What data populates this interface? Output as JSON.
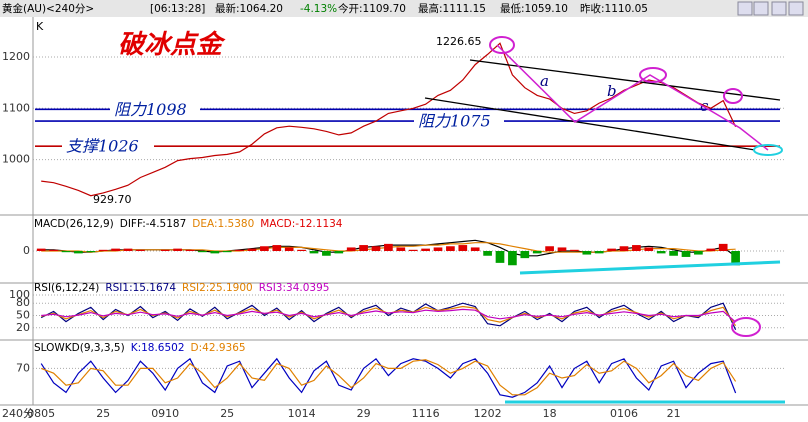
{
  "header": {
    "symbol": "黄金(AU)<240分>",
    "time": "[06:13:28]",
    "last": "最新:1064.20",
    "change": "-4.13%",
    "open": "今开:1109.70",
    "high": "最高:1111.15",
    "low": "最低:1059.10",
    "prev_close": "昨收:1110.05"
  },
  "chart_data": [
    {
      "type": "line",
      "axis_label": "K",
      "title": "破冰点金",
      "xlabel": "240分",
      "categories": [
        "0805",
        null,
        null,
        null,
        null,
        "25",
        null,
        null,
        null,
        null,
        "0910",
        null,
        null,
        null,
        null,
        "25",
        null,
        null,
        null,
        null,
        null,
        "1014",
        null,
        null,
        null,
        null,
        "29",
        null,
        null,
        null,
        null,
        "1116",
        null,
        null,
        null,
        null,
        "1202",
        null,
        null,
        null,
        null,
        "18",
        null,
        null,
        null,
        null,
        null,
        "0106",
        null,
        null,
        null,
        "21",
        null,
        null,
        null,
        null,
        null,
        null,
        null,
        null
      ],
      "values": [
        958,
        955,
        948,
        940,
        929.7,
        935,
        942,
        950,
        965,
        975,
        985,
        998,
        1002,
        1004,
        1008,
        1010,
        1015,
        1030,
        1050,
        1062,
        1065,
        1063,
        1060,
        1055,
        1048,
        1052,
        1065,
        1075,
        1090,
        1095,
        1100,
        1108,
        1125,
        1135,
        1155,
        1185,
        1205,
        1226.65,
        1165,
        1140,
        1125,
        1118,
        1100,
        1090,
        1095,
        1110,
        1120,
        1135,
        1145,
        1155,
        1150,
        1140,
        1125,
        1110,
        1100,
        1115,
        1064,
        null,
        null,
        null
      ],
      "color": "#c00000",
      "ylim": [
        892,
        1272
      ],
      "yticks": [
        1000,
        1100,
        1200
      ],
      "grid": true,
      "annotations": [
        "1226.65",
        "929.70",
        "a",
        "b",
        "c"
      ],
      "levels": [
        {
          "label": "阻力1098",
          "value": 1098,
          "color": "#0000b0"
        },
        {
          "label": "阻力1075",
          "value": 1075,
          "color": "#0000b0"
        },
        {
          "label": "支撑1026",
          "value": 1026,
          "color": "#c00000"
        }
      ]
    },
    {
      "type": "line",
      "title": "MACD(26,12,9)",
      "ylim": [
        -16,
        16
      ],
      "yticks": [
        0
      ],
      "grid": true,
      "series": [
        {
          "name": "DIFF:-4.5187",
          "color": "#000000",
          "values": [
            1,
            1,
            0,
            -1,
            -1,
            0,
            1,
            1,
            1,
            1,
            1,
            1,
            1,
            0,
            -1,
            0,
            1,
            2,
            3,
            4,
            4,
            3,
            1,
            -1,
            -1,
            1,
            3,
            4,
            5,
            5,
            5,
            5,
            6,
            7,
            8,
            9,
            7,
            3,
            -2,
            -4,
            -4,
            -2,
            0,
            0,
            -1,
            -1,
            0,
            2,
            3,
            4,
            3,
            1,
            -1,
            -1,
            1,
            3,
            -4.5187,
            null,
            null,
            null
          ]
        },
        {
          "name": "DEA:1.5380",
          "color": "#e08000",
          "values": [
            0,
            0,
            0,
            0,
            -1,
            0,
            0,
            1,
            1,
            1,
            1,
            1,
            1,
            1,
            0,
            0,
            0,
            1,
            2,
            3,
            3,
            3,
            2,
            1,
            0,
            0,
            1,
            2,
            3,
            4,
            4,
            5,
            5,
            6,
            6,
            7,
            7,
            6,
            4,
            2,
            0,
            -1,
            -1,
            -1,
            -1,
            -1,
            0,
            0,
            1,
            2,
            2,
            2,
            1,
            0,
            0,
            1,
            1.538,
            null,
            null,
            null
          ]
        },
        {
          "name": "MACD:-12.1134",
          "type": "bar",
          "color": "#e00000",
          "color_down": "#00a000",
          "values": [
            2,
            1,
            -1,
            -2,
            -1,
            1,
            2,
            2,
            1,
            0,
            1,
            2,
            1,
            -1,
            -2,
            -1,
            1,
            2,
            4,
            5,
            3,
            1,
            -2,
            -4,
            -2,
            3,
            5,
            4,
            6,
            3,
            1,
            2,
            3,
            4,
            5,
            3,
            -4,
            -10,
            -12,
            -6,
            -2,
            4,
            3,
            1,
            -3,
            -2,
            2,
            4,
            5,
            3,
            -2,
            -4,
            -5,
            -3,
            2,
            6,
            -12.1134,
            null,
            null,
            null
          ]
        }
      ]
    },
    {
      "type": "line",
      "title": "RSI(6,12,24)",
      "ylim": [
        0,
        100
      ],
      "yticks": [
        20,
        50,
        80,
        100
      ],
      "grid": true,
      "series": [
        {
          "name": "RSI1:15.1674",
          "color": "#000080",
          "values": [
            45,
            60,
            35,
            55,
            70,
            40,
            65,
            50,
            72,
            45,
            60,
            38,
            66,
            48,
            70,
            42,
            58,
            75,
            50,
            68,
            40,
            62,
            35,
            55,
            70,
            45,
            65,
            75,
            50,
            68,
            58,
            78,
            62,
            70,
            80,
            72,
            30,
            25,
            45,
            60,
            40,
            55,
            35,
            60,
            70,
            45,
            65,
            75,
            55,
            40,
            60,
            35,
            50,
            45,
            70,
            80,
            15.1674,
            null,
            null,
            null
          ]
        },
        {
          "name": "RSI2:25.1900",
          "color": "#e08000",
          "values": [
            48,
            55,
            42,
            52,
            62,
            45,
            60,
            52,
            65,
            50,
            56,
            44,
            60,
            50,
            63,
            47,
            56,
            67,
            54,
            63,
            46,
            58,
            42,
            53,
            63,
            48,
            60,
            68,
            55,
            63,
            58,
            70,
            62,
            66,
            72,
            68,
            40,
            34,
            45,
            55,
            45,
            52,
            42,
            56,
            62,
            49,
            60,
            67,
            57,
            46,
            56,
            42,
            50,
            48,
            62,
            70,
            25.19,
            null,
            null,
            null
          ]
        },
        {
          "name": "RSI3:34.0395",
          "color": "#c000c0",
          "values": [
            50,
            53,
            47,
            51,
            57,
            49,
            55,
            52,
            58,
            52,
            54,
            48,
            55,
            51,
            57,
            50,
            54,
            60,
            55,
            58,
            50,
            55,
            47,
            52,
            57,
            50,
            56,
            61,
            56,
            59,
            57,
            63,
            60,
            62,
            65,
            63,
            47,
            42,
            46,
            52,
            48,
            51,
            47,
            53,
            57,
            51,
            55,
            59,
            55,
            50,
            53,
            47,
            50,
            50,
            56,
            60,
            34.0395,
            null,
            null,
            null
          ]
        }
      ]
    },
    {
      "type": "line",
      "title": "SLOWKD(9,3,3,5)",
      "ylim": [
        0,
        100
      ],
      "yticks": [
        70
      ],
      "grid": true,
      "series": [
        {
          "name": "K:18.6502",
          "color": "#0000c0",
          "values": [
            80,
            40,
            20,
            60,
            85,
            50,
            20,
            45,
            85,
            60,
            25,
            70,
            90,
            40,
            20,
            75,
            85,
            30,
            60,
            90,
            50,
            20,
            65,
            85,
            35,
            25,
            70,
            90,
            55,
            80,
            90,
            85,
            70,
            50,
            80,
            90,
            60,
            15,
            10,
            20,
            40,
            75,
            30,
            70,
            85,
            40,
            80,
            90,
            50,
            25,
            75,
            85,
            30,
            60,
            80,
            85,
            18.6502,
            null,
            null,
            null
          ]
        },
        {
          "name": "D:42.9365",
          "color": "#e08000",
          "values": [
            70,
            60,
            35,
            40,
            70,
            65,
            35,
            35,
            70,
            70,
            40,
            50,
            80,
            60,
            30,
            50,
            80,
            50,
            45,
            80,
            70,
            35,
            45,
            75,
            55,
            30,
            50,
            80,
            70,
            70,
            85,
            88,
            78,
            60,
            70,
            85,
            75,
            35,
            15,
            15,
            30,
            60,
            50,
            55,
            78,
            60,
            65,
            85,
            70,
            40,
            55,
            80,
            55,
            45,
            70,
            82,
            42.9365,
            null,
            null,
            null
          ]
        }
      ]
    }
  ]
}
